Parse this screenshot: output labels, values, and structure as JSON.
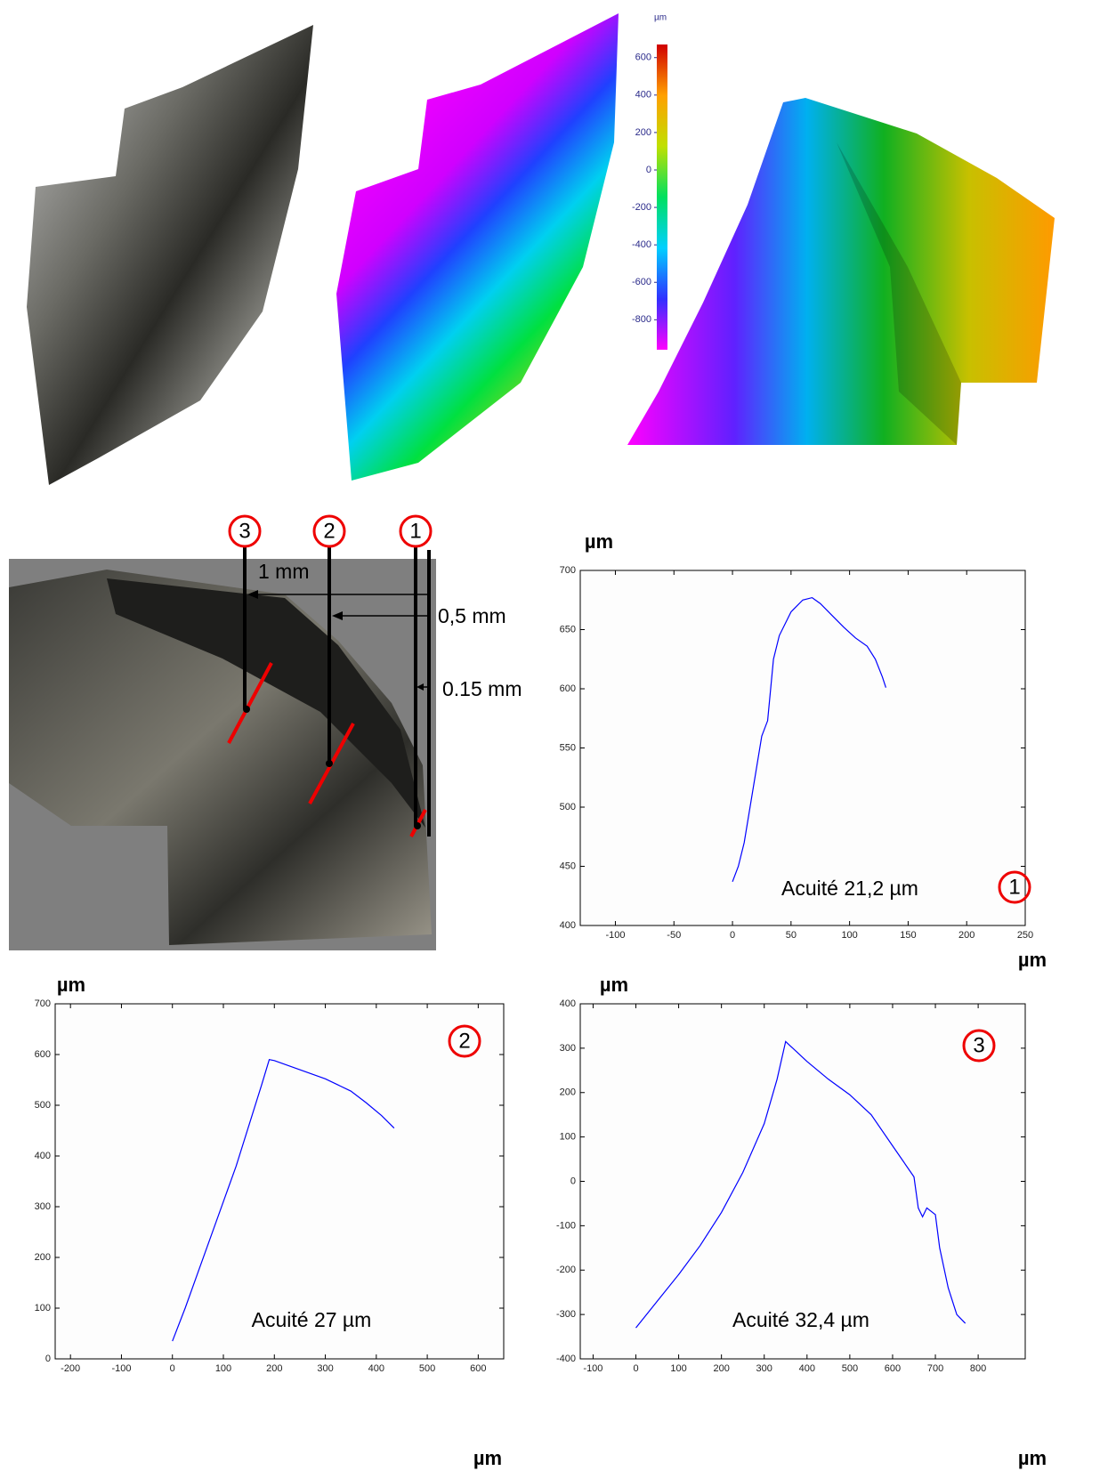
{
  "chart_data": [
    {
      "type": "colorbar",
      "title": "µm",
      "ylim": [
        -960,
        670
      ],
      "yticks": [
        600,
        400,
        200,
        0,
        -200,
        -400,
        -600,
        -800
      ],
      "colors": [
        "#ff00ff",
        "#3030ff",
        "#00d0ff",
        "#00e060",
        "#c0e000",
        "#ffa000",
        "#d00000"
      ]
    },
    {
      "type": "line",
      "ylabel": "µm",
      "xlabel": "µm",
      "annotation": "Acuité 21,2 µm",
      "marker": "1",
      "color": "#0000ff",
      "x": [
        0,
        5,
        10,
        15,
        20,
        25,
        30,
        35,
        40,
        50,
        60,
        68,
        75,
        85,
        95,
        105,
        115,
        122,
        128,
        131
      ],
      "values": [
        437,
        450,
        470,
        500,
        530,
        560,
        573,
        625,
        645,
        665,
        675,
        677,
        672,
        662,
        652,
        643,
        636,
        625,
        610,
        601
      ],
      "xlim": [
        -130,
        250
      ],
      "xticks": [
        -100,
        -50,
        0,
        50,
        100,
        150,
        200,
        250
      ],
      "ylim": [
        400,
        700
      ],
      "yticks": [
        400,
        450,
        500,
        550,
        600,
        650,
        700
      ]
    },
    {
      "type": "line",
      "ylabel": "µm",
      "xlabel": "µm",
      "annotation": "Acuité 27 µm",
      "marker": "2",
      "color": "#0000ff",
      "x": [
        0,
        25,
        50,
        75,
        100,
        125,
        150,
        175,
        190,
        200,
        250,
        300,
        350,
        380,
        410,
        435
      ],
      "values": [
        35,
        100,
        170,
        240,
        310,
        380,
        460,
        540,
        590,
        588,
        570,
        552,
        528,
        505,
        480,
        455
      ],
      "xlim": [
        -230,
        650
      ],
      "xticks": [
        -200,
        -100,
        0,
        100,
        200,
        300,
        400,
        500,
        600
      ],
      "ylim": [
        0,
        700
      ],
      "yticks": [
        0,
        100,
        200,
        300,
        400,
        500,
        600,
        700
      ]
    },
    {
      "type": "line",
      "ylabel": "µm",
      "xlabel": "µm",
      "annotation": "Acuité 32,4 µm",
      "marker": "3",
      "color": "#0000ff",
      "x": [
        0,
        50,
        100,
        150,
        200,
        250,
        300,
        330,
        350,
        400,
        450,
        500,
        550,
        600,
        650,
        660,
        670,
        680,
        700,
        710,
        730,
        750,
        770
      ],
      "values": [
        -330,
        -270,
        -210,
        -145,
        -70,
        20,
        130,
        230,
        315,
        270,
        230,
        195,
        150,
        80,
        10,
        -60,
        -80,
        -60,
        -75,
        -150,
        -240,
        -300,
        -320
      ],
      "xlim": [
        -130,
        910
      ],
      "xticks": [
        -100,
        0,
        100,
        200,
        300,
        400,
        500,
        600,
        700,
        800
      ],
      "ylim": [
        -400,
        400
      ],
      "yticks": [
        -400,
        -300,
        -200,
        -100,
        0,
        100,
        200,
        300,
        400
      ]
    }
  ],
  "figure": {
    "markers": [
      "3",
      "2",
      "1"
    ],
    "distances": [
      "1 mm",
      "0,5 mm",
      "0.15 mm"
    ]
  }
}
